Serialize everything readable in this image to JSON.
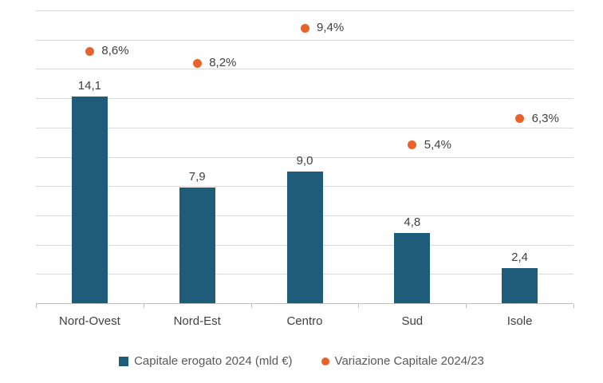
{
  "chart_data": {
    "type": "bar",
    "title": "",
    "categories": [
      "Nord-Ovest",
      "Nord-Est",
      "Centro",
      "Sud",
      "Isole"
    ],
    "series": [
      {
        "name": "Capitale erogato 2024 (mld €)",
        "type": "bar",
        "axis": "primary",
        "values": [
          14.1,
          7.9,
          9.0,
          4.8,
          2.4
        ],
        "labels": [
          "14,1",
          "7,9",
          "9,0",
          "4,8",
          "2,4"
        ]
      },
      {
        "name": "Variazione Capitale 2024/23",
        "type": "scatter",
        "axis": "secondary",
        "values": [
          8.6,
          8.2,
          9.4,
          5.4,
          6.3
        ],
        "labels": [
          "8,6%",
          "8,2%",
          "9,4%",
          "5,4%",
          "6,3%"
        ]
      }
    ],
    "primary_axis": {
      "min": 0,
      "max": 20,
      "gridline_step": 2,
      "tick_labels_visible": false
    },
    "secondary_axis": {
      "min": 0,
      "max": 10,
      "tick_labels_visible": false
    },
    "grid": true,
    "legend_position": "bottom"
  },
  "legend": {
    "items": [
      {
        "label": "Capitale erogato 2024 (mld €)",
        "marker": "square",
        "color": "#1f5c7a"
      },
      {
        "label": "Variazione Capitale 2024/23",
        "marker": "circle",
        "color": "#e8632c"
      }
    ]
  },
  "colors": {
    "bar": "#1f5c7a",
    "point": "#e8632c",
    "gridline": "#d9d9d9",
    "axis_line": "#bfbfbf",
    "data_label": "#404040",
    "legend_text": "#595959",
    "background": "#ffffff"
  }
}
